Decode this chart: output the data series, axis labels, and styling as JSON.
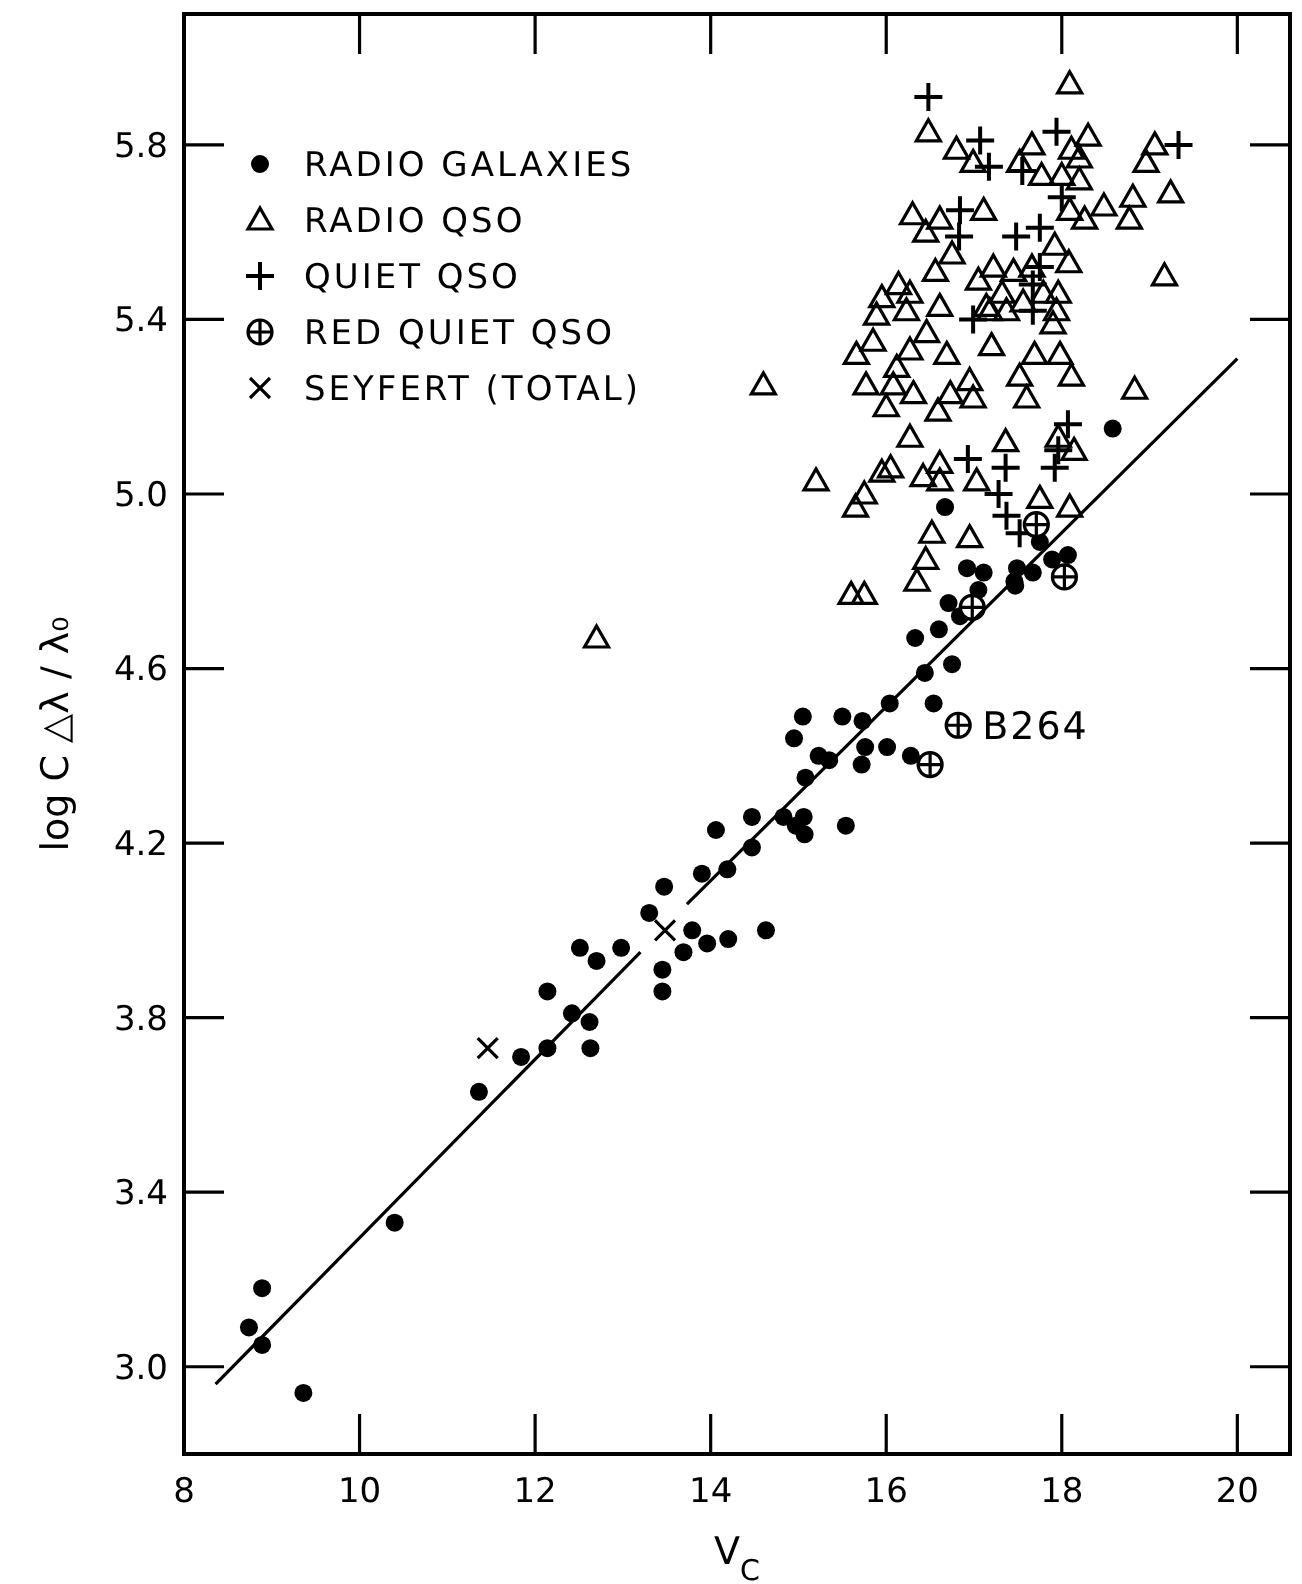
{
  "chart_data": {
    "type": "scatter",
    "xlabel": "V$_{C}$",
    "ylabel": "log C △λ / λ₀",
    "xlim": [
      8,
      20.6
    ],
    "ylim": [
      2.8,
      6.1
    ],
    "xticks": [
      8,
      10,
      12,
      14,
      16,
      18,
      20
    ],
    "yticks": [
      {
        "value": 3,
        "label": "3.0"
      },
      {
        "value": 3.4,
        "label": "3.4"
      },
      {
        "value": 3.8,
        "label": "3.8"
      },
      {
        "value": 4.2,
        "label": "4.2"
      },
      {
        "value": 4.6,
        "label": "4.6"
      },
      {
        "value": 5,
        "label": "5.0"
      },
      {
        "value": 5.4,
        "label": "5.4"
      },
      {
        "value": 5.8,
        "label": "5.8"
      }
    ],
    "grid": false,
    "legend": "top left",
    "annotations": [
      {
        "text": "B264",
        "x": 16.82,
        "y": 4.47
      }
    ],
    "series": [
      {
        "name": "RADIO GALAXIES",
        "color": "#000000",
        "marker": "circle",
        "x": [
          8.74,
          8.89,
          8.89,
          9.36,
          10.4,
          11.36,
          11.84,
          12.14,
          12.14,
          12.42,
          12.62,
          12.63,
          12.7,
          13.45,
          13.45,
          12.51,
          12.98,
          13.3,
          13.47,
          13.69,
          13.79,
          13.96,
          14.2,
          14.63,
          13.9,
          14.19,
          14.06,
          14.47,
          14.47,
          14.83,
          15.06,
          15.07,
          14.97,
          15.54,
          15.08,
          15.23,
          15.35,
          15.72,
          14.95,
          15.05,
          15.5,
          15.73,
          15.76,
          16.01,
          16.04,
          16.28,
          16.54,
          16.44,
          16.75,
          16.33,
          16.6,
          16.71,
          16.84,
          17.05,
          17.47,
          18.58,
          16.67,
          16.92,
          17.11,
          17.49,
          17.46,
          17.67,
          17.89,
          18.07,
          17.75
        ],
        "values": [
          3.09,
          3.18,
          3.05,
          2.94,
          3.33,
          3.63,
          3.71,
          3.73,
          3.86,
          3.81,
          3.79,
          3.73,
          3.93,
          3.91,
          3.86,
          3.96,
          3.96,
          4.04,
          4.1,
          3.95,
          4.0,
          3.97,
          3.98,
          4.0,
          4.13,
          4.14,
          4.23,
          4.19,
          4.26,
          4.26,
          4.26,
          4.22,
          4.24,
          4.24,
          4.35,
          4.4,
          4.39,
          4.38,
          4.44,
          4.49,
          4.49,
          4.48,
          4.42,
          4.42,
          4.52,
          4.4,
          4.52,
          4.59,
          4.61,
          4.67,
          4.69,
          4.75,
          4.72,
          4.78,
          4.79,
          5.15,
          4.97,
          4.83,
          4.82,
          4.83,
          4.8,
          4.82,
          4.85,
          4.86,
          4.89
        ]
      },
      {
        "name": "RADIO QSO",
        "color": "#000000",
        "marker": "triangle",
        "x": [
          18.09,
          16.48,
          16.8,
          16.99,
          17.52,
          17.66,
          18.3,
          18.11,
          18.2,
          17.77,
          18.0,
          18.2,
          19.06,
          18.96,
          18.81,
          19.24,
          18.77,
          18.48,
          18.09,
          18.26,
          19.17,
          17.11,
          16.61,
          16.3,
          16.45,
          16.75,
          17.92,
          18.08,
          16.56,
          17.22,
          17.45,
          17.66,
          17.05,
          17.96,
          16.14,
          16.27,
          16.61,
          17.32,
          17.56,
          17.79,
          17.14,
          16.23,
          17.18,
          17.37,
          17.94,
          17.9,
          16.46,
          16.69,
          16.27,
          17.2,
          17.69,
          17.98,
          16.12,
          16.08,
          16.31,
          17.52,
          18.11,
          16.95,
          16.73,
          16.99,
          16.59,
          17.6,
          18.83,
          16.27,
          17.36,
          17.96,
          18.14,
          16.05,
          16.42,
          16.61,
          16.61,
          17.03,
          17.75,
          18.09,
          16.52,
          16.95,
          16.45,
          16.35,
          15.89,
          15.66,
          15.77,
          14.6,
          12.7,
          15.2,
          15.6,
          15.75,
          15.65,
          15.75,
          15.95,
          16.0,
          15.85,
          15.95
        ],
        "values": [
          5.94,
          5.83,
          5.79,
          5.76,
          5.76,
          5.8,
          5.82,
          5.79,
          5.77,
          5.73,
          5.73,
          5.72,
          5.8,
          5.76,
          5.68,
          5.69,
          5.63,
          5.66,
          5.65,
          5.63,
          5.5,
          5.65,
          5.63,
          5.64,
          5.6,
          5.55,
          5.57,
          5.53,
          5.51,
          5.52,
          5.51,
          5.52,
          5.49,
          5.46,
          5.48,
          5.46,
          5.43,
          5.46,
          5.44,
          5.46,
          5.43,
          5.42,
          5.42,
          5.42,
          5.42,
          5.39,
          5.37,
          5.32,
          5.33,
          5.34,
          5.32,
          5.32,
          5.29,
          5.25,
          5.23,
          5.27,
          5.27,
          5.26,
          5.23,
          5.22,
          5.19,
          5.22,
          5.24,
          5.13,
          5.12,
          5.13,
          5.1,
          5.06,
          5.04,
          5.07,
          5.03,
          5.03,
          4.99,
          4.97,
          4.91,
          4.9,
          4.85,
          4.8,
          5.41,
          5.32,
          5.25,
          5.25,
          4.67,
          5.03,
          4.77,
          4.77,
          4.97,
          5.0,
          5.05,
          5.2,
          5.35,
          5.45
        ]
      },
      {
        "name": "QUIET QSO",
        "color": "#000000",
        "marker": "cross",
        "x": [
          18.07,
          17.96,
          17.92,
          16.93,
          17.36,
          17.28,
          17.37,
          17.52,
          17.67,
          16.99,
          16.48,
          17.07,
          17.17,
          17.94,
          19.33,
          17.55,
          16.84,
          16.83,
          18.0,
          17.75,
          17.48,
          17.75,
          17.67
        ],
        "values": [
          5.16,
          5.1,
          5.06,
          5.08,
          5.06,
          5.0,
          4.95,
          4.91,
          5.42,
          5.4,
          5.91,
          5.81,
          5.75,
          5.83,
          5.8,
          5.74,
          5.65,
          5.59,
          5.68,
          5.61,
          5.59,
          5.52,
          5.48
        ]
      },
      {
        "name": "RED QUIET QSO",
        "color": "#000000",
        "marker": "circled-plus",
        "x": [
          16.5,
          16.82,
          16.98,
          18.03,
          17.71
        ],
        "values": [
          4.38,
          4.47,
          4.74,
          4.81,
          4.93
        ]
      },
      {
        "name": "SEYFERT (TOTAL)",
        "color": "#000000",
        "marker": "x",
        "x": [
          11.46,
          13.48
        ],
        "values": [
          3.73,
          4.0
        ]
      },
      {
        "type": "line",
        "color": "#000000",
        "marker": "none",
        "line_style": "solid",
        "x": [
          8.36,
          13.2,
          13.45,
          13.73,
          20.0
        ],
        "values": [
          2.96,
          3.95,
          null,
          4.06,
          5.31
        ]
      }
    ]
  }
}
